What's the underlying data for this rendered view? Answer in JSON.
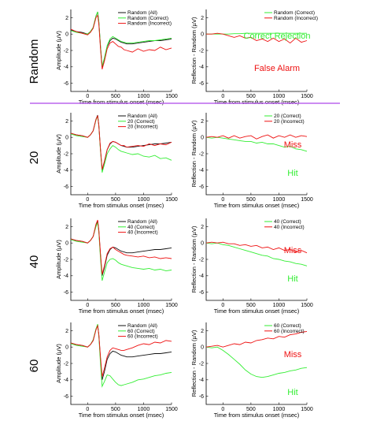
{
  "colors": {
    "all": "#111111",
    "correct": "#33ee33",
    "incorrect": "#ee1111",
    "divider": "#bb66ee"
  },
  "common": {
    "xlabel": "Time from stimulus onset (msec)",
    "ylabel_left": "Amplitude (µV)",
    "ylabel_right": "Reflection - Random (µV)",
    "xlim": [
      -300,
      1500
    ],
    "xticks": [
      0,
      500,
      1000,
      1500
    ],
    "ylim": [
      -7,
      3
    ],
    "yticks": [
      2,
      0,
      -2,
      -4,
      -6
    ]
  },
  "rows": [
    {
      "label": "Random",
      "left": {
        "legend": [
          "Random (All)",
          "Random (Correct)",
          "Random (Incorrect)"
        ]
      },
      "right": {
        "legend": [
          "Random (Correct)",
          "Random (Incorrect)"
        ],
        "anno_green": "Correct Rejection",
        "anno_red": "False Alarm"
      }
    },
    {
      "label": "20",
      "left": {
        "legend": [
          "Random (All)",
          "20 (Correct)",
          "20 (Incorrect)"
        ]
      },
      "right": {
        "legend": [
          "20 (Correct)",
          "20 (Incorrect)"
        ],
        "anno_red": "Miss",
        "anno_green": "Hit"
      }
    },
    {
      "label": "40",
      "left": {
        "legend": [
          "Random (All)",
          "40 (Correct)",
          "40 (Incorrect)"
        ]
      },
      "right": {
        "legend": [
          "40 (Correct)",
          "40 (Incorrect)"
        ],
        "anno_red": "Miss",
        "anno_green": "Hit"
      }
    },
    {
      "label": "60",
      "left": {
        "legend": [
          "Random (All)",
          "60 (Correct)",
          "60 (Incorrect)"
        ]
      },
      "right": {
        "legend": [
          "60 (Correct)",
          "60 (Incorrect)"
        ],
        "anno_red": "Miss",
        "anno_green": "Hit"
      }
    }
  ],
  "chart_data": [
    {
      "type": "line",
      "panel": "Random-left",
      "x": [
        -300,
        -200,
        -100,
        0,
        50,
        100,
        150,
        180,
        200,
        230,
        260,
        300,
        350,
        400,
        450,
        500,
        550,
        600,
        650,
        700,
        800,
        900,
        1000,
        1100,
        1200,
        1300,
        1400,
        1500
      ],
      "series": [
        {
          "name": "Random (All)",
          "values": [
            0.5,
            0.3,
            0.2,
            0,
            0.3,
            0.8,
            2.2,
            2.7,
            1.5,
            -1.5,
            -4.0,
            -3.0,
            -1.5,
            -0.8,
            -0.5,
            -0.6,
            -0.8,
            -1.0,
            -1.1,
            -1.2,
            -1.2,
            -1.1,
            -1.0,
            -0.9,
            -0.8,
            -0.8,
            -0.7,
            -0.6
          ]
        },
        {
          "name": "Random (Correct)",
          "values": [
            0.4,
            0.2,
            0.1,
            0,
            0.3,
            0.8,
            2.2,
            2.7,
            1.5,
            -1.4,
            -3.9,
            -2.9,
            -1.4,
            -0.6,
            -0.3,
            -0.5,
            -0.7,
            -0.9,
            -1.0,
            -1.1,
            -1.1,
            -1.0,
            -0.9,
            -0.8,
            -0.8,
            -0.7,
            -0.6,
            -0.5
          ]
        },
        {
          "name": "Random (Incorrect)",
          "values": [
            0.6,
            0.3,
            0.1,
            -0.1,
            0.2,
            0.7,
            2.0,
            2.3,
            1.2,
            -1.8,
            -4.3,
            -3.3,
            -1.8,
            -1.1,
            -0.9,
            -1.2,
            -1.5,
            -1.6,
            -1.9,
            -2.0,
            -2.2,
            -1.8,
            -2.1,
            -1.9,
            -2.0,
            -1.6,
            -1.9,
            -1.7
          ]
        }
      ]
    },
    {
      "type": "line",
      "panel": "Random-right",
      "x": [
        -300,
        -200,
        -100,
        0,
        100,
        200,
        300,
        400,
        500,
        600,
        700,
        800,
        900,
        1000,
        1100,
        1200,
        1300,
        1400,
        1500
      ],
      "series": [
        {
          "name": "Random (Correct)",
          "values": [
            0,
            0,
            0,
            0,
            0,
            0.05,
            0.05,
            0.1,
            0.1,
            0.1,
            0.1,
            0.1,
            0.1,
            0.1,
            0.1,
            0.1,
            0.1,
            0.1,
            0.1
          ]
        },
        {
          "name": "Random (Incorrect)",
          "values": [
            0,
            0,
            0.1,
            0,
            -0.2,
            -0.4,
            -0.2,
            -0.5,
            -0.4,
            -0.8,
            -0.6,
            -0.9,
            -0.5,
            -0.9,
            -0.6,
            -1.1,
            -0.5,
            -1.0,
            -0.8
          ]
        }
      ]
    },
    {
      "type": "line",
      "panel": "20-left",
      "x": [
        -300,
        -200,
        -100,
        0,
        50,
        100,
        150,
        180,
        200,
        230,
        260,
        300,
        350,
        400,
        450,
        500,
        550,
        600,
        650,
        700,
        800,
        900,
        1000,
        1100,
        1200,
        1300,
        1400,
        1500
      ],
      "series": [
        {
          "name": "Random (All)",
          "values": [
            0.5,
            0.3,
            0.2,
            0,
            0.3,
            0.8,
            2.2,
            2.7,
            1.5,
            -1.5,
            -4.0,
            -3.0,
            -1.5,
            -0.8,
            -0.5,
            -0.6,
            -0.8,
            -1.0,
            -1.1,
            -1.2,
            -1.2,
            -1.1,
            -1.0,
            -0.9,
            -0.8,
            -0.8,
            -0.7,
            -0.6
          ]
        },
        {
          "name": "20 (Correct)",
          "values": [
            0.4,
            0.2,
            0.1,
            0,
            0.3,
            0.8,
            2.1,
            2.6,
            1.4,
            -1.7,
            -4.3,
            -3.3,
            -2.0,
            -1.4,
            -1.0,
            -1.2,
            -1.5,
            -1.7,
            -1.8,
            -1.9,
            -2.1,
            -2.0,
            -2.3,
            -2.4,
            -2.2,
            -2.6,
            -2.5,
            -2.8
          ]
        },
        {
          "name": "20 (Incorrect)",
          "values": [
            0.5,
            0.3,
            0.2,
            0,
            0.3,
            0.8,
            2.2,
            2.6,
            1.4,
            -1.4,
            -3.9,
            -2.9,
            -1.5,
            -0.7,
            -0.5,
            -0.6,
            -0.8,
            -1.0,
            -1.0,
            -1.2,
            -1.1,
            -1.0,
            -1.1,
            -0.8,
            -1.0,
            -0.8,
            -0.9,
            -0.6
          ]
        }
      ]
    },
    {
      "type": "line",
      "panel": "20-right",
      "x": [
        -300,
        -200,
        -100,
        0,
        100,
        200,
        300,
        400,
        500,
        600,
        700,
        800,
        900,
        1000,
        1100,
        1200,
        1300,
        1400,
        1500
      ],
      "series": [
        {
          "name": "20 (Correct)",
          "values": [
            0,
            -0.1,
            0,
            -0.1,
            -0.2,
            -0.3,
            -0.4,
            -0.5,
            -0.5,
            -0.7,
            -0.6,
            -0.8,
            -0.8,
            -1.0,
            -1.2,
            -1.1,
            -1.4,
            -1.5,
            -1.7
          ]
        },
        {
          "name": "20 (Incorrect)",
          "values": [
            0,
            0.1,
            0,
            0.2,
            -0.1,
            0.2,
            -0.1,
            0.1,
            0.2,
            -0.2,
            0.1,
            0.3,
            -0.1,
            0.2,
            0,
            0.3,
            0,
            0.2,
            0.1
          ]
        }
      ]
    },
    {
      "type": "line",
      "panel": "40-left",
      "x": [
        -300,
        -200,
        -100,
        0,
        50,
        100,
        150,
        180,
        200,
        230,
        260,
        300,
        350,
        400,
        450,
        500,
        550,
        600,
        650,
        700,
        800,
        900,
        1000,
        1100,
        1200,
        1300,
        1400,
        1500
      ],
      "series": [
        {
          "name": "Random (All)",
          "values": [
            0.5,
            0.3,
            0.2,
            0,
            0.3,
            0.8,
            2.2,
            2.7,
            1.5,
            -1.5,
            -4.0,
            -3.0,
            -1.5,
            -0.8,
            -0.5,
            -0.6,
            -0.8,
            -1.0,
            -1.1,
            -1.2,
            -1.2,
            -1.1,
            -1.0,
            -0.9,
            -0.8,
            -0.8,
            -0.7,
            -0.6
          ]
        },
        {
          "name": "40 (Correct)",
          "values": [
            0.4,
            0.2,
            0.1,
            0,
            0.3,
            0.8,
            2.0,
            2.5,
            1.3,
            -1.9,
            -4.6,
            -3.6,
            -2.4,
            -2.0,
            -1.9,
            -2.1,
            -2.4,
            -2.6,
            -2.7,
            -2.8,
            -3.0,
            -3.1,
            -3.2,
            -3.1,
            -3.3,
            -3.2,
            -3.4,
            -3.3
          ]
        },
        {
          "name": "40 (Incorrect)",
          "values": [
            0.5,
            0.3,
            0.2,
            0,
            0.3,
            0.8,
            2.3,
            2.8,
            1.6,
            -1.3,
            -3.8,
            -2.8,
            -1.3,
            -0.7,
            -0.5,
            -0.8,
            -1.0,
            -1.2,
            -1.4,
            -1.5,
            -1.6,
            -1.7,
            -1.6,
            -1.8,
            -1.7,
            -1.9,
            -1.8,
            -1.9
          ]
        }
      ]
    },
    {
      "type": "line",
      "panel": "40-right",
      "x": [
        -300,
        -200,
        -100,
        0,
        100,
        200,
        300,
        400,
        500,
        600,
        700,
        800,
        900,
        1000,
        1100,
        1200,
        1300,
        1400,
        1500
      ],
      "series": [
        {
          "name": "40 (Correct)",
          "values": [
            0,
            -0.1,
            0,
            -0.2,
            -0.3,
            -0.5,
            -0.7,
            -0.9,
            -1.1,
            -1.3,
            -1.5,
            -1.6,
            -1.9,
            -2.0,
            -2.2,
            -2.3,
            -2.5,
            -2.6,
            -2.8
          ]
        },
        {
          "name": "40 (Incorrect)",
          "values": [
            0,
            0.1,
            0,
            0.1,
            -0.1,
            -0.1,
            -0.3,
            -0.2,
            -0.4,
            -0.3,
            -0.6,
            -0.5,
            -0.8,
            -0.6,
            -0.9,
            -0.8,
            -1.1,
            -0.9,
            -1.2
          ]
        }
      ]
    },
    {
      "type": "line",
      "panel": "60-left",
      "x": [
        -300,
        -200,
        -100,
        0,
        50,
        100,
        150,
        180,
        200,
        230,
        260,
        300,
        350,
        400,
        450,
        500,
        550,
        600,
        650,
        700,
        800,
        900,
        1000,
        1100,
        1200,
        1300,
        1400,
        1500
      ],
      "series": [
        {
          "name": "Random (All)",
          "values": [
            0.5,
            0.3,
            0.2,
            0,
            0.3,
            0.8,
            2.2,
            2.7,
            1.5,
            -1.5,
            -4.0,
            -3.0,
            -1.5,
            -0.8,
            -0.5,
            -0.6,
            -0.8,
            -1.0,
            -1.1,
            -1.2,
            -1.2,
            -1.1,
            -1.0,
            -0.9,
            -0.8,
            -0.8,
            -0.7,
            -0.6
          ]
        },
        {
          "name": "60 (Correct)",
          "values": [
            0.4,
            0.2,
            0.1,
            0,
            0.3,
            0.9,
            2.2,
            2.8,
            1.3,
            -2.0,
            -4.8,
            -4.2,
            -3.4,
            -3.5,
            -3.9,
            -4.3,
            -4.6,
            -4.7,
            -4.6,
            -4.5,
            -4.3,
            -4.0,
            -3.9,
            -3.7,
            -3.5,
            -3.4,
            -3.2,
            -3.1
          ]
        },
        {
          "name": "60 (Incorrect)",
          "values": [
            0.5,
            0.3,
            0.2,
            0,
            0.3,
            0.8,
            2.1,
            2.6,
            1.5,
            -1.2,
            -3.6,
            -2.6,
            -1.2,
            -0.4,
            -0.1,
            -0.2,
            -0.3,
            -0.4,
            -0.4,
            -0.3,
            -0.1,
            0.2,
            0.4,
            0.3,
            0.6,
            0.5,
            0.8,
            0.7
          ]
        }
      ]
    },
    {
      "type": "line",
      "panel": "60-right",
      "x": [
        -300,
        -200,
        -100,
        0,
        100,
        200,
        300,
        400,
        500,
        600,
        700,
        800,
        900,
        1000,
        1100,
        1200,
        1300,
        1400,
        1500
      ],
      "series": [
        {
          "name": "60 (Correct)",
          "values": [
            0,
            -0.1,
            0,
            -0.4,
            -0.9,
            -1.5,
            -2.1,
            -2.8,
            -3.3,
            -3.6,
            -3.7,
            -3.6,
            -3.4,
            -3.2,
            -3.1,
            -2.9,
            -2.8,
            -2.6,
            -2.5
          ]
        },
        {
          "name": "60 (Incorrect)",
          "values": [
            0,
            0.1,
            0.2,
            0,
            0.2,
            0.4,
            0.3,
            0.6,
            0.5,
            0.8,
            0.9,
            1.1,
            1.0,
            1.3,
            1.2,
            1.5,
            1.6,
            1.8,
            1.9
          ]
        }
      ]
    }
  ]
}
